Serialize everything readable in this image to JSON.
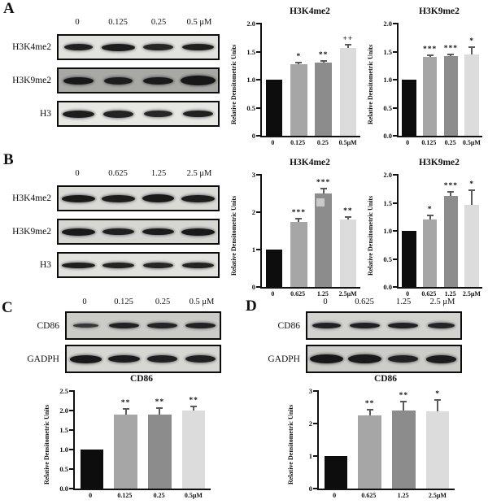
{
  "figure": {
    "title": "Western blot and densitometry figure",
    "panels": [
      {
        "label": "A",
        "blot": {
          "lanes": [
            "0",
            "0.125",
            "0.25",
            "0.5 μM"
          ],
          "rows": [
            {
              "label": "H3K4me2",
              "bg": "#e2e2df",
              "bands": [
                [
                  0.72,
                  8,
                  0.93
                ],
                [
                  0.82,
                  9,
                  0.95
                ],
                [
                  0.74,
                  8,
                  0.9
                ],
                [
                  0.8,
                  8,
                  0.94
                ]
              ]
            },
            {
              "label": "H3K9me2",
              "bg": "#a8a8a4",
              "bands": [
                [
                  0.74,
                  9,
                  0.96
                ],
                [
                  0.7,
                  9,
                  0.93
                ],
                [
                  0.74,
                  9,
                  0.95
                ],
                [
                  0.88,
                  12,
                  0.97
                ]
              ]
            },
            {
              "label": "H3",
              "bg": "#e7e7e4",
              "bands": [
                [
                  0.8,
                  9,
                  0.95
                ],
                [
                  0.76,
                  9,
                  0.92
                ],
                [
                  0.7,
                  8,
                  0.9
                ],
                [
                  0.74,
                  8,
                  0.93
                ]
              ]
            }
          ]
        }
      },
      {
        "label": "B",
        "blot": {
          "lanes": [
            "0",
            "0.625",
            "1.25",
            "2.5 μM"
          ],
          "rows": [
            {
              "label": "H3K4me2",
              "bg": "#dadad7",
              "bands": [
                [
                  0.85,
                  9,
                  0.96
                ],
                [
                  0.85,
                  9,
                  0.94
                ],
                [
                  0.8,
                  10,
                  0.96
                ],
                [
                  0.85,
                  9,
                  0.95
                ]
              ]
            },
            {
              "label": "H3K9me2",
              "bg": "#d6d6d3",
              "bands": [
                [
                  0.85,
                  9,
                  0.96
                ],
                [
                  0.8,
                  8,
                  0.93
                ],
                [
                  0.78,
                  8,
                  0.95
                ],
                [
                  0.85,
                  9,
                  0.96
                ]
              ]
            },
            {
              "label": "H3",
              "bg": "#e2e2df",
              "bands": [
                [
                  0.82,
                  7,
                  0.94
                ],
                [
                  0.8,
                  7,
                  0.92
                ],
                [
                  0.76,
                  7,
                  0.9
                ],
                [
                  0.78,
                  7,
                  0.92
                ]
              ]
            }
          ]
        }
      },
      {
        "label": "C",
        "blot": {
          "lanes": [
            "0",
            "0.125",
            "0.25",
            "0.5 μM"
          ],
          "rows": [
            {
              "label": "CD86",
              "bg": "#cbcbc8",
              "bands": [
                [
                  0.68,
                  5,
                  0.8
                ],
                [
                  0.8,
                  7,
                  0.92
                ],
                [
                  0.78,
                  7,
                  0.9
                ],
                [
                  0.8,
                  7,
                  0.92
                ]
              ]
            },
            {
              "label": "GADPH",
              "bg": "#d6d6d3",
              "bands": [
                [
                  0.85,
                  10,
                  0.97
                ],
                [
                  0.82,
                  9,
                  0.95
                ],
                [
                  0.8,
                  9,
                  0.93
                ],
                [
                  0.78,
                  9,
                  0.93
                ]
              ]
            }
          ]
        }
      },
      {
        "label": "D",
        "blot": {
          "lanes": [
            "0",
            "0.625",
            "1.25",
            "2.5 μM"
          ],
          "rows": [
            {
              "label": "CD86",
              "bg": "#d2d2cf",
              "bands": [
                [
                  0.74,
                  7,
                  0.92
                ],
                [
                  0.8,
                  7,
                  0.93
                ],
                [
                  0.78,
                  7,
                  0.92
                ],
                [
                  0.7,
                  7,
                  0.9
                ]
              ]
            },
            {
              "label": "GADPH",
              "bg": "#ccccc9",
              "bands": [
                [
                  0.88,
                  11,
                  0.97
                ],
                [
                  0.86,
                  11,
                  0.96
                ],
                [
                  0.78,
                  9,
                  0.92
                ],
                [
                  0.8,
                  10,
                  0.95
                ]
              ]
            }
          ]
        }
      }
    ]
  },
  "chart_data": [
    {
      "panel": "A",
      "type": "bar",
      "title": "H3K4me2",
      "ylabel": "Relative Densitometric Units",
      "categories": [
        "0",
        "0.125",
        "0.25",
        "0.5μM"
      ],
      "values": [
        1.0,
        1.27,
        1.3,
        1.57
      ],
      "errors": [
        0,
        0.04,
        0.03,
        0.06
      ],
      "significance": [
        "",
        "*",
        "**",
        "++"
      ],
      "ylim": [
        0,
        2.0
      ],
      "yticks": [
        "0",
        "0.5",
        "1.0",
        "1.5",
        "2.0"
      ],
      "bar_colors": [
        "#0d0d0d",
        "#a6a6a6",
        "#8c8c8c",
        "#dcdcdc"
      ],
      "grid": false,
      "legend": "none"
    },
    {
      "panel": "A",
      "type": "bar",
      "title": "H3K9me2",
      "ylabel": "Relative Densitometric Units",
      "categories": [
        "0",
        "0.125",
        "0.25",
        "0.5μM"
      ],
      "values": [
        1.0,
        1.4,
        1.42,
        1.45
      ],
      "errors": [
        0,
        0.03,
        0.03,
        0.13
      ],
      "significance": [
        "",
        "***",
        "***",
        "*"
      ],
      "ylim": [
        0,
        2.0
      ],
      "yticks": [
        "0.0",
        "0.5",
        "1.0",
        "1.5",
        "2.0"
      ],
      "bar_colors": [
        "#0d0d0d",
        "#a6a6a6",
        "#8c8c8c",
        "#dcdcdc"
      ],
      "grid": false,
      "legend": "none"
    },
    {
      "panel": "B",
      "type": "bar",
      "title": "H3K4me2",
      "ylabel": "Relative Densitometric Units",
      "categories": [
        "0",
        "0.625",
        "1.25",
        "2.5μM"
      ],
      "values": [
        1.0,
        1.75,
        2.5,
        1.8
      ],
      "errors": [
        0,
        0.08,
        0.13,
        0.07
      ],
      "significance": [
        "",
        "***",
        "***",
        "**"
      ],
      "ylim": [
        0,
        3
      ],
      "yticks": [
        "0",
        "1",
        "2",
        "3"
      ],
      "bar_colors": [
        "#0d0d0d",
        "#a6a6a6",
        "#8c8c8c",
        "#dcdcdc"
      ],
      "artifact": {
        "slot": 2,
        "bottom_pct": 72,
        "left_pct": 22,
        "size": 10,
        "color": "#c9c9c9"
      },
      "grid": false,
      "legend": "none"
    },
    {
      "panel": "B",
      "type": "bar",
      "title": "H3K9me2",
      "ylabel": "Relative Densitometric Units",
      "categories": [
        "0",
        "0.625",
        "1.25",
        "2.5μM"
      ],
      "values": [
        1.0,
        1.2,
        1.62,
        1.47
      ],
      "errors": [
        0,
        0.08,
        0.07,
        0.25
      ],
      "significance": [
        "",
        "*",
        "***",
        "*"
      ],
      "ylim": [
        0,
        2.0
      ],
      "yticks": [
        "0.0",
        "0.5",
        "1.0",
        "1.5",
        "2.0"
      ],
      "bar_colors": [
        "#0d0d0d",
        "#a6a6a6",
        "#8c8c8c",
        "#dcdcdc"
      ],
      "grid": false,
      "legend": "none"
    },
    {
      "panel": "C",
      "type": "bar",
      "title": "CD86",
      "ylabel": "Relative Densitometric Units",
      "categories": [
        "0",
        "0.125",
        "0.25",
        "0.5μM"
      ],
      "values": [
        1.0,
        1.9,
        1.9,
        2.0
      ],
      "errors": [
        0,
        0.15,
        0.17,
        0.1
      ],
      "significance": [
        "",
        "**",
        "**",
        "**"
      ],
      "ylim": [
        0,
        2.5
      ],
      "yticks": [
        "0.0",
        "0.5",
        "1.0",
        "1.5",
        "2.0",
        "2.5"
      ],
      "bar_colors": [
        "#0d0d0d",
        "#a6a6a6",
        "#8c8c8c",
        "#dcdcdc"
      ],
      "grid": false,
      "legend": "none"
    },
    {
      "panel": "D",
      "type": "bar",
      "title": "CD86",
      "ylabel": "Relative Densitometric Units",
      "categories": [
        "0",
        "0.625",
        "1.25",
        "2.5μM"
      ],
      "values": [
        1.0,
        2.25,
        2.4,
        2.38
      ],
      "errors": [
        0,
        0.17,
        0.27,
        0.35
      ],
      "significance": [
        "",
        "**",
        "**",
        "*"
      ],
      "ylim": [
        0,
        3
      ],
      "yticks": [
        "0",
        "1",
        "2",
        "3"
      ],
      "bar_colors": [
        "#0d0d0d",
        "#a6a6a6",
        "#8c8c8c",
        "#dcdcdc"
      ],
      "grid": false,
      "legend": "none"
    }
  ]
}
